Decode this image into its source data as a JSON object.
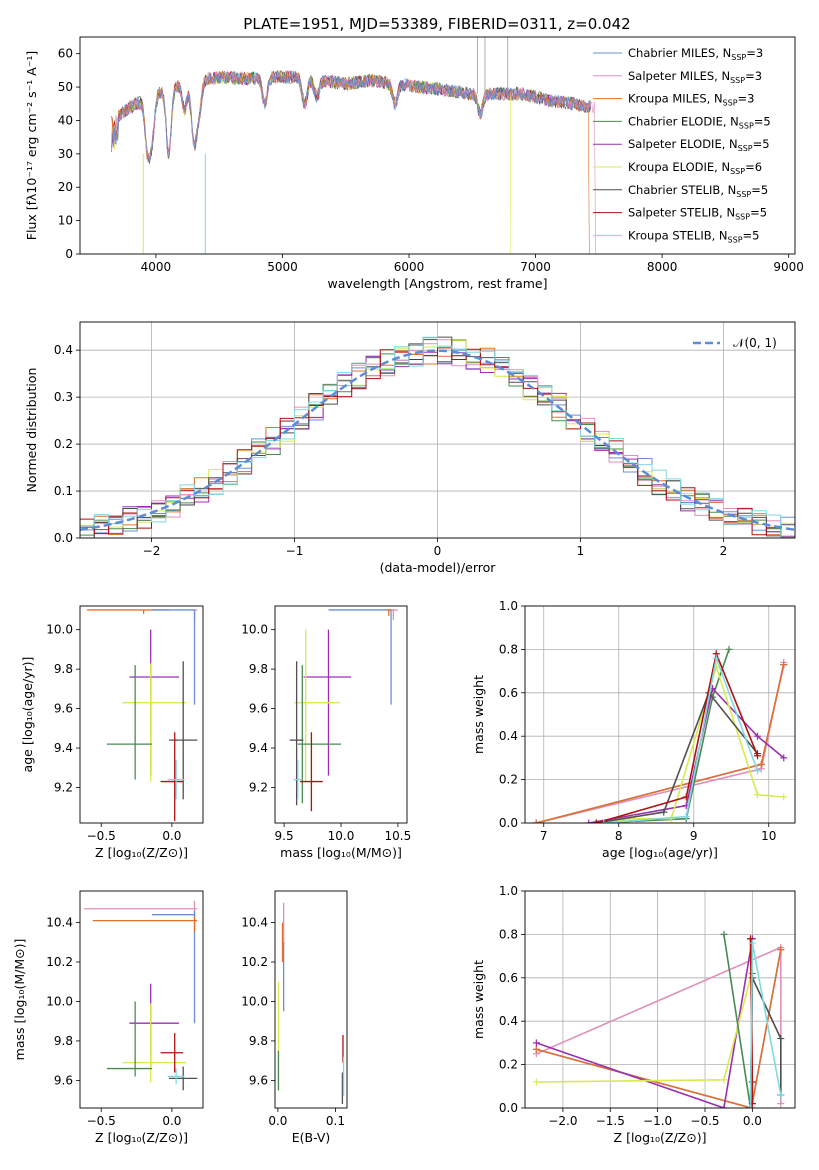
{
  "title": "PLATE=1951, MJD=53389, FIBERID=0311, z=0.042",
  "colors": {
    "chabrier_miles": "#6b8fd6",
    "salpeter_miles": "#e090b8",
    "kroupa_miles": "#e07030",
    "chabrier_elodie": "#4a8a50",
    "salpeter_elodie": "#9a30b0",
    "kroupa_elodie": "#d8ea50",
    "chabrier_stelib": "#505050",
    "salpeter_stelib": "#b01010",
    "kroupa_stelib": "#80d8e0",
    "gaussian": "#5b8bd9",
    "grid": "#b0b0b0"
  },
  "legend_spectrum": [
    {
      "key": "chabrier_miles",
      "label": "Chabrier MILES, N",
      "sub": "SSP",
      "suffix": "=3"
    },
    {
      "key": "salpeter_miles",
      "label": "Salpeter MILES, N",
      "sub": "SSP",
      "suffix": "=3"
    },
    {
      "key": "kroupa_miles",
      "label": "Kroupa MILES, N",
      "sub": "SSP",
      "suffix": "=3"
    },
    {
      "key": "chabrier_elodie",
      "label": "Chabrier ELODIE, N",
      "sub": "SSP",
      "suffix": "=5"
    },
    {
      "key": "salpeter_elodie",
      "label": "Salpeter ELODIE, N",
      "sub": "SSP",
      "suffix": "=5"
    },
    {
      "key": "kroupa_elodie",
      "label": "Kroupa ELODIE, N",
      "sub": "SSP",
      "suffix": "=6"
    },
    {
      "key": "chabrier_stelib",
      "label": "Chabrier STELIB, N",
      "sub": "SSP",
      "suffix": "=5"
    },
    {
      "key": "salpeter_stelib",
      "label": "Salpeter STELIB, N",
      "sub": "SSP",
      "suffix": "=5"
    },
    {
      "key": "kroupa_stelib",
      "label": "Kroupa STELIB, N",
      "sub": "SSP",
      "suffix": "=5"
    }
  ],
  "chart_data": [
    {
      "id": "spectrum",
      "type": "line",
      "xlabel": "wavelength [Angstrom, rest frame]",
      "ylabel": "Flux [fλ10⁻¹⁷ erg cm⁻² s⁻¹ A⁻¹]",
      "xlim": [
        3400,
        9050
      ],
      "ylim": [
        0,
        65
      ],
      "xticks": [
        4000,
        5000,
        6000,
        7000,
        8000,
        9000
      ],
      "yticks": [
        0,
        10,
        20,
        30,
        40,
        50,
        60
      ],
      "continuum": {
        "x": [
          3650,
          3800,
          3950,
          4100,
          4300,
          4500,
          4700,
          4900,
          5100,
          5300,
          5500,
          5700,
          5900,
          6100,
          6300,
          6500,
          6700,
          6900,
          7100,
          7300,
          7420
        ],
        "y": [
          40,
          44,
          47,
          50,
          52,
          53,
          52.5,
          53,
          53,
          52,
          51,
          52,
          51,
          50,
          49,
          48,
          48,
          48,
          46,
          45,
          44
        ]
      },
      "absorption": [
        [
          3934,
          15
        ],
        [
          3969,
          12
        ],
        [
          4101,
          20
        ],
        [
          4227,
          8
        ],
        [
          4300,
          18
        ],
        [
          4340,
          10
        ],
        [
          4861,
          8
        ],
        [
          5175,
          8
        ],
        [
          5270,
          5
        ],
        [
          5890,
          6
        ],
        [
          6563,
          6
        ]
      ],
      "spikes": [
        [
          6540,
          65
        ],
        [
          6600,
          65
        ],
        [
          6780,
          65
        ]
      ],
      "cutoffs": {
        "kroupa_miles": 7420,
        "kroupa_elodie": 6800,
        "salpeter_miles": 7470
      }
    },
    {
      "id": "residuals",
      "type": "histogram",
      "xlabel": "(data-model)/error",
      "ylabel": "Normed distribution",
      "xlim": [
        -2.5,
        2.5
      ],
      "ylim": [
        0,
        0.46
      ],
      "xticks": [
        -2,
        -1,
        0,
        1,
        2
      ],
      "yticks": [
        0.0,
        0.1,
        0.2,
        0.3,
        0.4
      ],
      "bin_width": 0.1,
      "legend_label": "𝒩(0, 1)"
    },
    {
      "id": "age_vs_Z",
      "type": "errorbar",
      "xlabel": "Z [log₁₀(Z/Z⊙)]",
      "ylabel": "age  [log₁₀(age/yr)]",
      "xlim": [
        -0.65,
        0.22
      ],
      "ylim": [
        9.02,
        10.12
      ],
      "xticks": [
        -0.5,
        0.0
      ],
      "yticks": [
        9.2,
        9.4,
        9.6,
        9.8,
        10.0
      ],
      "points": [
        {
          "s": "kroupa_miles",
          "x": -0.2,
          "y": 10.1,
          "xe": [
            0.4,
            0.18
          ],
          "ye": [
            0.02,
            0
          ]
        },
        {
          "s": "salpeter_miles",
          "x": 0.16,
          "y": 10.1,
          "xe": [
            0.02,
            0.02
          ],
          "ye": [
            0.05,
            0
          ]
        },
        {
          "s": "chabrier_miles",
          "x": 0.16,
          "y": 10.1,
          "xe": [
            0.3,
            0
          ],
          "ye": [
            0.48,
            0.0
          ]
        },
        {
          "s": "salpeter_elodie",
          "x": -0.15,
          "y": 9.76,
          "xe": [
            0.15,
            0.2
          ],
          "ye": [
            0.5,
            0.24
          ]
        },
        {
          "s": "kroupa_elodie",
          "x": -0.15,
          "y": 9.63,
          "xe": [
            0.2,
            0.25
          ],
          "ye": [
            0.4,
            0.2
          ]
        },
        {
          "s": "chabrier_elodie",
          "x": -0.26,
          "y": 9.42,
          "xe": [
            0.2,
            0.12
          ],
          "ye": [
            0.18,
            0.4
          ]
        },
        {
          "s": "chabrier_stelib",
          "x": 0.08,
          "y": 9.44,
          "xe": [
            0.1,
            0.1
          ],
          "ye": [
            0.3,
            0.4
          ]
        },
        {
          "s": "salpeter_stelib",
          "x": 0.02,
          "y": 9.23,
          "xe": [
            0.1,
            0.06
          ],
          "ye": [
            0.2,
            0.25
          ]
        },
        {
          "s": "kroupa_stelib",
          "x": 0.03,
          "y": 9.24,
          "xe": [
            0.06,
            0.06
          ],
          "ye": [
            0.1,
            0.1
          ]
        }
      ]
    },
    {
      "id": "age_vs_mass",
      "type": "errorbar",
      "xlabel": "mass [log₁₀(M/M⊙)]",
      "ylabel": "",
      "xlim": [
        9.42,
        10.58
      ],
      "ylim": [
        9.02,
        10.12
      ],
      "xticks": [
        9.5,
        10.0,
        10.5
      ],
      "yticks": [
        9.2,
        9.4,
        9.6,
        9.8,
        10.0
      ],
      "points": [
        {
          "s": "chabrier_miles",
          "x": 10.44,
          "y": 10.1,
          "xe": [
            0.55,
            0.02
          ],
          "ye": [
            0.48,
            0.0
          ]
        },
        {
          "s": "kroupa_miles",
          "x": 10.42,
          "y": 10.1,
          "xe": [
            0.02,
            0.02
          ],
          "ye": [
            0.03,
            0.0
          ]
        },
        {
          "s": "salpeter_miles",
          "x": 10.46,
          "y": 10.1,
          "xe": [
            0.02,
            0.04
          ],
          "ye": [
            0.05,
            0
          ]
        },
        {
          "s": "salpeter_elodie",
          "x": 9.89,
          "y": 9.76,
          "xe": [
            0.22,
            0.2
          ],
          "ye": [
            0.5,
            0.24
          ]
        },
        {
          "s": "kroupa_elodie",
          "x": 9.69,
          "y": 9.63,
          "xe": [
            0.1,
            0.3
          ],
          "ye": [
            0.4,
            0.37
          ]
        },
        {
          "s": "chabrier_elodie",
          "x": 9.66,
          "y": 9.42,
          "xe": [
            0.04,
            0.34
          ],
          "ye": [
            0.3,
            0.4
          ]
        },
        {
          "s": "chabrier_stelib",
          "x": 9.61,
          "y": 9.44,
          "xe": [
            0.06,
            0.06
          ],
          "ye": [
            0.33,
            0.4
          ]
        },
        {
          "s": "salpeter_stelib",
          "x": 9.74,
          "y": 9.23,
          "xe": [
            0.1,
            0.1
          ],
          "ye": [
            0.15,
            0.25
          ]
        },
        {
          "s": "kroupa_stelib",
          "x": 9.62,
          "y": 9.24,
          "xe": [
            0.04,
            0.04
          ],
          "ye": [
            0.1,
            0.1
          ]
        }
      ]
    },
    {
      "id": "weight_vs_age",
      "type": "line",
      "xlabel": "age  [log₁₀(age/yr)]",
      "ylabel": "mass weight",
      "xlim": [
        6.75,
        10.35
      ],
      "ylim": [
        0,
        1
      ],
      "xticks": [
        7,
        8,
        9,
        10
      ],
      "yticks": [
        0.0,
        0.2,
        0.4,
        0.6,
        0.8,
        1.0
      ],
      "series": [
        {
          "s": "chabrier_miles",
          "x": [
            6.9,
            9.9,
            10.2
          ],
          "y": [
            0.0,
            0.27,
            0.73
          ]
        },
        {
          "s": "salpeter_miles",
          "x": [
            6.9,
            9.9,
            10.2
          ],
          "y": [
            0.0,
            0.25,
            0.74
          ]
        },
        {
          "s": "kroupa_miles",
          "x": [
            6.9,
            9.9,
            10.2
          ],
          "y": [
            0.0,
            0.27,
            0.73
          ]
        },
        {
          "s": "chabrier_elodie",
          "x": [
            7.7,
            8.9,
            9.25,
            9.47
          ],
          "y": [
            0.0,
            0.02,
            0.58,
            0.8
          ]
        },
        {
          "s": "salpeter_elodie",
          "x": [
            7.6,
            8.9,
            9.25,
            9.85,
            10.2
          ],
          "y": [
            0.0,
            0.08,
            0.62,
            0.4,
            0.3
          ]
        },
        {
          "s": "kroupa_elodie",
          "x": [
            7.7,
            8.2,
            8.7,
            9.3,
            9.85,
            10.2
          ],
          "y": [
            0.0,
            0.02,
            0.02,
            0.72,
            0.13,
            0.12
          ]
        },
        {
          "s": "chabrier_stelib",
          "x": [
            7.7,
            8.6,
            9.2,
            9.85
          ],
          "y": [
            0.0,
            0.05,
            0.6,
            0.32
          ]
        },
        {
          "s": "salpeter_stelib",
          "x": [
            7.7,
            8.9,
            9.3,
            9.85
          ],
          "y": [
            0.0,
            0.12,
            0.78,
            0.31
          ]
        },
        {
          "s": "kroupa_stelib",
          "x": [
            7.8,
            8.9,
            9.3,
            9.85
          ],
          "y": [
            0.0,
            0.03,
            0.76,
            0.24
          ]
        }
      ]
    },
    {
      "id": "mass_vs_Z",
      "type": "errorbar",
      "xlabel": "Z [log₁₀(Z/Z⊙)]",
      "ylabel": "mass [log₁₀(M/M⊙)]",
      "xlim": [
        -0.65,
        0.22
      ],
      "ylim": [
        9.46,
        10.56
      ],
      "xticks": [
        -0.5,
        0.0
      ],
      "yticks": [
        9.6,
        9.8,
        10.0,
        10.2,
        10.4
      ],
      "points": [
        {
          "s": "salpeter_miles",
          "x": 0.16,
          "y": 10.47,
          "xe": [
            0.78,
            0.02
          ],
          "ye": [
            0.04,
            0.04
          ]
        },
        {
          "s": "chabrier_miles",
          "x": 0.16,
          "y": 10.44,
          "xe": [
            0.3,
            0
          ],
          "ye": [
            0.55,
            0.02
          ]
        },
        {
          "s": "kroupa_miles",
          "x": 0.16,
          "y": 10.41,
          "xe": [
            0.72,
            0.02
          ],
          "ye": [
            0.06,
            0.02
          ]
        },
        {
          "s": "salpeter_elodie",
          "x": -0.15,
          "y": 9.89,
          "xe": [
            0.15,
            0.2
          ],
          "ye": [
            0.22,
            0.2
          ]
        },
        {
          "s": "kroupa_elodie",
          "x": -0.15,
          "y": 9.69,
          "xe": [
            0.2,
            0.25
          ],
          "ye": [
            0.1,
            0.3
          ]
        },
        {
          "s": "chabrier_elodie",
          "x": -0.26,
          "y": 9.66,
          "xe": [
            0.2,
            0.12
          ],
          "ye": [
            0.04,
            0.34
          ]
        },
        {
          "s": "chabrier_stelib",
          "x": 0.08,
          "y": 9.61,
          "xe": [
            0.1,
            0.1
          ],
          "ye": [
            0.06,
            0.06
          ]
        },
        {
          "s": "salpeter_stelib",
          "x": 0.02,
          "y": 9.74,
          "xe": [
            0.1,
            0.06
          ],
          "ye": [
            0.1,
            0.1
          ]
        },
        {
          "s": "kroupa_stelib",
          "x": 0.03,
          "y": 9.62,
          "xe": [
            0.06,
            0.06
          ],
          "ye": [
            0.04,
            0.04
          ]
        }
      ]
    },
    {
      "id": "mass_vs_ebv",
      "type": "errorbar",
      "xlabel": "E(B-V)",
      "ylabel": "",
      "xlim": [
        -0.005,
        0.12
      ],
      "ylim": [
        9.46,
        10.56
      ],
      "xticks": [
        0.0,
        0.1
      ],
      "yticks": [
        9.6,
        9.8,
        10.0,
        10.2,
        10.4
      ],
      "points": [
        {
          "s": "salpeter_miles",
          "x": 0.01,
          "y": 10.44,
          "xe": [
            0,
            0
          ],
          "ye": [
            0.15,
            0.06
          ]
        },
        {
          "s": "kroupa_miles",
          "x": 0.008,
          "y": 10.3,
          "xe": [
            0,
            0
          ],
          "ye": [
            0.1,
            0.1
          ]
        },
        {
          "s": "chabrier_miles",
          "x": 0.01,
          "y": 10.1,
          "xe": [
            0,
            0
          ],
          "ye": [
            0.15,
            0.2
          ]
        },
        {
          "s": "kroupa_elodie",
          "x": 0.001,
          "y": 9.8,
          "xe": [
            0,
            0
          ],
          "ye": [
            0.25,
            0.3
          ]
        },
        {
          "s": "chabrier_elodie",
          "x": 0.001,
          "y": 9.65,
          "xe": [
            0,
            0
          ],
          "ye": [
            0.1,
            0.1
          ]
        },
        {
          "s": "salpeter_stelib",
          "x": 0.113,
          "y": 9.76,
          "xe": [
            0,
            0
          ],
          "ye": [
            0.07,
            0.07
          ]
        },
        {
          "s": "chabrier_stelib",
          "x": 0.112,
          "y": 9.56,
          "xe": [
            0,
            0
          ],
          "ye": [
            0.08,
            0.08
          ]
        },
        {
          "s": "kroupa_stelib",
          "x": 0.114,
          "y": 9.62,
          "xe": [
            0,
            0
          ],
          "ye": [
            0.1,
            0.1
          ]
        }
      ]
    },
    {
      "id": "weight_vs_Z",
      "type": "line",
      "xlabel": "Z [log₁₀(Z/Z⊙)]",
      "ylabel": "mass weight",
      "xlim": [
        -2.4,
        0.45
      ],
      "ylim": [
        0,
        1
      ],
      "xticks": [
        -2.0,
        -1.5,
        -1.0,
        -0.5,
        0.0
      ],
      "yticks": [
        0.0,
        0.2,
        0.4,
        0.6,
        0.8,
        1.0
      ],
      "series": [
        {
          "s": "salpeter_miles",
          "x": [
            -2.28,
            0.3,
            0.3
          ],
          "y": [
            0.25,
            0.74,
            0.02
          ]
        },
        {
          "s": "chabrier_miles",
          "x": [
            -2.28,
            -0.01,
            0.3
          ],
          "y": [
            0.27,
            0.0,
            0.73
          ]
        },
        {
          "s": "kroupa_miles",
          "x": [
            -2.28,
            -0.01,
            0.3
          ],
          "y": [
            0.27,
            0.0,
            0.73
          ]
        },
        {
          "s": "salpeter_elodie",
          "x": [
            -2.28,
            -0.3,
            0.0
          ],
          "y": [
            0.3,
            0.0,
            0.78
          ]
        },
        {
          "s": "kroupa_elodie",
          "x": [
            -2.28,
            -0.3,
            -0.02,
            0.0
          ],
          "y": [
            0.12,
            0.13,
            0.6,
            0.72
          ]
        },
        {
          "s": "chabrier_elodie",
          "x": [
            -0.3,
            -0.02,
            0.0
          ],
          "y": [
            0.8,
            0.0,
            0.62
          ]
        },
        {
          "s": "chabrier_stelib",
          "x": [
            -0.02,
            0.0,
            0.3,
            0.3
          ],
          "y": [
            0.0,
            0.6,
            0.32,
            0.06
          ]
        },
        {
          "s": "salpeter_stelib",
          "x": [
            -0.02,
            0.0,
            0.0
          ],
          "y": [
            0.78,
            0.12,
            0.02
          ]
        },
        {
          "s": "kroupa_stelib",
          "x": [
            -0.02,
            0.0,
            0.3
          ],
          "y": [
            0.0,
            0.76,
            0.06
          ]
        }
      ]
    }
  ]
}
